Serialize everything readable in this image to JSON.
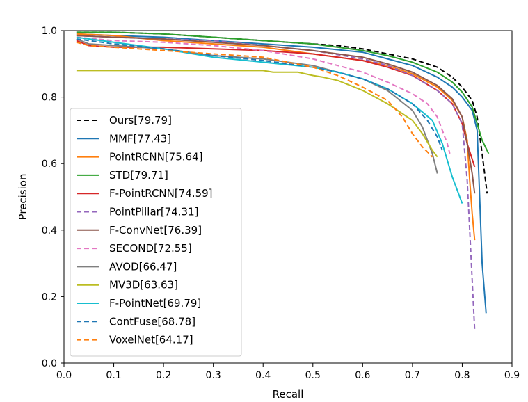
{
  "chart_data": {
    "type": "line",
    "title": "",
    "xlabel": "Recall",
    "ylabel": "Precision",
    "xlim": [
      0.0,
      0.9
    ],
    "ylim": [
      0.0,
      1.0
    ],
    "xticks": [
      "0.0",
      "0.1",
      "0.2",
      "0.3",
      "0.4",
      "0.5",
      "0.6",
      "0.7",
      "0.8",
      "0.9"
    ],
    "yticks": [
      "0.0",
      "0.2",
      "0.4",
      "0.6",
      "0.8",
      "1.0"
    ],
    "grid": false,
    "legend_position": "center-left",
    "series": [
      {
        "name": "Ours[79.79]",
        "color": "#000000",
        "dash": "dashed",
        "points": [
          [
            0.025,
            0.995
          ],
          [
            0.1,
            0.995
          ],
          [
            0.2,
            0.99
          ],
          [
            0.3,
            0.98
          ],
          [
            0.4,
            0.97
          ],
          [
            0.5,
            0.96
          ],
          [
            0.55,
            0.955
          ],
          [
            0.6,
            0.945
          ],
          [
            0.65,
            0.93
          ],
          [
            0.7,
            0.915
          ],
          [
            0.75,
            0.89
          ],
          [
            0.78,
            0.86
          ],
          [
            0.8,
            0.83
          ],
          [
            0.82,
            0.79
          ],
          [
            0.83,
            0.74
          ],
          [
            0.84,
            0.63
          ],
          [
            0.85,
            0.51
          ]
        ]
      },
      {
        "name": "MMF[77.43]",
        "color": "#1f77b4",
        "dash": "solid",
        "points": [
          [
            0.025,
            0.99
          ],
          [
            0.1,
            0.985
          ],
          [
            0.2,
            0.98
          ],
          [
            0.3,
            0.97
          ],
          [
            0.4,
            0.96
          ],
          [
            0.5,
            0.95
          ],
          [
            0.6,
            0.935
          ],
          [
            0.65,
            0.915
          ],
          [
            0.7,
            0.895
          ],
          [
            0.75,
            0.86
          ],
          [
            0.78,
            0.83
          ],
          [
            0.8,
            0.8
          ],
          [
            0.82,
            0.76
          ],
          [
            0.83,
            0.7
          ],
          [
            0.835,
            0.5
          ],
          [
            0.84,
            0.3
          ],
          [
            0.848,
            0.15
          ]
        ]
      },
      {
        "name": "PointRCNN[75.64]",
        "color": "#ff7f0e",
        "dash": "solid",
        "points": [
          [
            0.025,
            0.99
          ],
          [
            0.1,
            0.985
          ],
          [
            0.2,
            0.97
          ],
          [
            0.3,
            0.96
          ],
          [
            0.4,
            0.95
          ],
          [
            0.5,
            0.93
          ],
          [
            0.6,
            0.91
          ],
          [
            0.65,
            0.895
          ],
          [
            0.7,
            0.87
          ],
          [
            0.75,
            0.83
          ],
          [
            0.78,
            0.79
          ],
          [
            0.8,
            0.74
          ],
          [
            0.81,
            0.67
          ],
          [
            0.815,
            0.55
          ],
          [
            0.82,
            0.45
          ],
          [
            0.825,
            0.37
          ]
        ]
      },
      {
        "name": "STD[79.71]",
        "color": "#2ca02c",
        "dash": "solid",
        "points": [
          [
            0.025,
            0.995
          ],
          [
            0.1,
            0.995
          ],
          [
            0.2,
            0.99
          ],
          [
            0.3,
            0.98
          ],
          [
            0.4,
            0.97
          ],
          [
            0.5,
            0.96
          ],
          [
            0.6,
            0.94
          ],
          [
            0.65,
            0.925
          ],
          [
            0.7,
            0.905
          ],
          [
            0.75,
            0.875
          ],
          [
            0.78,
            0.845
          ],
          [
            0.8,
            0.815
          ],
          [
            0.82,
            0.77
          ],
          [
            0.83,
            0.72
          ],
          [
            0.84,
            0.67
          ],
          [
            0.853,
            0.63
          ]
        ]
      },
      {
        "name": "F-PointRCNN[74.59]",
        "color": "#d62728",
        "dash": "solid",
        "points": [
          [
            0.025,
            0.97
          ],
          [
            0.05,
            0.955
          ],
          [
            0.1,
            0.95
          ],
          [
            0.2,
            0.95
          ],
          [
            0.3,
            0.945
          ],
          [
            0.4,
            0.94
          ],
          [
            0.5,
            0.93
          ],
          [
            0.6,
            0.91
          ],
          [
            0.65,
            0.89
          ],
          [
            0.7,
            0.865
          ],
          [
            0.75,
            0.82
          ],
          [
            0.78,
            0.78
          ],
          [
            0.8,
            0.72
          ],
          [
            0.81,
            0.66
          ],
          [
            0.825,
            0.59
          ]
        ]
      },
      {
        "name": "PointPillar[74.31]",
        "color": "#9467bd",
        "dash": "dashed",
        "points": [
          [
            0.025,
            0.985
          ],
          [
            0.1,
            0.98
          ],
          [
            0.2,
            0.975
          ],
          [
            0.3,
            0.97
          ],
          [
            0.4,
            0.955
          ],
          [
            0.5,
            0.94
          ],
          [
            0.6,
            0.915
          ],
          [
            0.65,
            0.895
          ],
          [
            0.7,
            0.865
          ],
          [
            0.75,
            0.82
          ],
          [
            0.78,
            0.78
          ],
          [
            0.8,
            0.72
          ],
          [
            0.81,
            0.55
          ],
          [
            0.815,
            0.4
          ],
          [
            0.82,
            0.25
          ],
          [
            0.825,
            0.1
          ]
        ]
      },
      {
        "name": "F-ConvNet[76.39]",
        "color": "#8c564b",
        "dash": "solid",
        "points": [
          [
            0.025,
            0.985
          ],
          [
            0.1,
            0.98
          ],
          [
            0.2,
            0.975
          ],
          [
            0.3,
            0.965
          ],
          [
            0.4,
            0.955
          ],
          [
            0.5,
            0.94
          ],
          [
            0.6,
            0.92
          ],
          [
            0.65,
            0.9
          ],
          [
            0.7,
            0.875
          ],
          [
            0.75,
            0.835
          ],
          [
            0.78,
            0.795
          ],
          [
            0.8,
            0.74
          ],
          [
            0.81,
            0.66
          ],
          [
            0.82,
            0.57
          ],
          [
            0.825,
            0.51
          ]
        ]
      },
      {
        "name": "SECOND[72.55]",
        "color": "#e377c2",
        "dash": "dashed",
        "points": [
          [
            0.025,
            0.98
          ],
          [
            0.1,
            0.97
          ],
          [
            0.2,
            0.965
          ],
          [
            0.3,
            0.955
          ],
          [
            0.4,
            0.94
          ],
          [
            0.5,
            0.915
          ],
          [
            0.6,
            0.875
          ],
          [
            0.65,
            0.845
          ],
          [
            0.7,
            0.81
          ],
          [
            0.73,
            0.78
          ],
          [
            0.75,
            0.74
          ],
          [
            0.76,
            0.7
          ],
          [
            0.77,
            0.66
          ],
          [
            0.775,
            0.63
          ]
        ]
      },
      {
        "name": "AVOD[66.47]",
        "color": "#7f7f7f",
        "dash": "solid",
        "points": [
          [
            0.025,
            0.975
          ],
          [
            0.05,
            0.96
          ],
          [
            0.1,
            0.955
          ],
          [
            0.2,
            0.945
          ],
          [
            0.3,
            0.925
          ],
          [
            0.4,
            0.915
          ],
          [
            0.5,
            0.895
          ],
          [
            0.55,
            0.875
          ],
          [
            0.6,
            0.855
          ],
          [
            0.65,
            0.82
          ],
          [
            0.7,
            0.76
          ],
          [
            0.72,
            0.71
          ],
          [
            0.74,
            0.63
          ],
          [
            0.75,
            0.57
          ]
        ]
      },
      {
        "name": "MV3D[63.63]",
        "color": "#bcbd22",
        "dash": "solid",
        "points": [
          [
            0.025,
            0.88
          ],
          [
            0.1,
            0.88
          ],
          [
            0.2,
            0.88
          ],
          [
            0.3,
            0.88
          ],
          [
            0.4,
            0.88
          ],
          [
            0.42,
            0.875
          ],
          [
            0.47,
            0.875
          ],
          [
            0.5,
            0.865
          ],
          [
            0.52,
            0.86
          ],
          [
            0.55,
            0.85
          ],
          [
            0.6,
            0.82
          ],
          [
            0.65,
            0.78
          ],
          [
            0.7,
            0.73
          ],
          [
            0.72,
            0.69
          ],
          [
            0.74,
            0.64
          ],
          [
            0.75,
            0.62
          ]
        ]
      },
      {
        "name": "F-PointNet[69.79]",
        "color": "#17becf",
        "dash": "solid",
        "points": [
          [
            0.025,
            0.98
          ],
          [
            0.1,
            0.965
          ],
          [
            0.2,
            0.945
          ],
          [
            0.3,
            0.92
          ],
          [
            0.4,
            0.905
          ],
          [
            0.5,
            0.89
          ],
          [
            0.55,
            0.875
          ],
          [
            0.6,
            0.855
          ],
          [
            0.65,
            0.825
          ],
          [
            0.7,
            0.78
          ],
          [
            0.74,
            0.73
          ],
          [
            0.76,
            0.66
          ],
          [
            0.77,
            0.61
          ],
          [
            0.78,
            0.56
          ],
          [
            0.8,
            0.48
          ]
        ]
      },
      {
        "name": "ContFuse[68.78]",
        "color": "#1f77b4",
        "dash": "dashed",
        "points": [
          [
            0.025,
            0.975
          ],
          [
            0.1,
            0.96
          ],
          [
            0.2,
            0.945
          ],
          [
            0.3,
            0.925
          ],
          [
            0.4,
            0.91
          ],
          [
            0.5,
            0.89
          ],
          [
            0.55,
            0.875
          ],
          [
            0.6,
            0.855
          ],
          [
            0.65,
            0.825
          ],
          [
            0.7,
            0.78
          ],
          [
            0.73,
            0.73
          ],
          [
            0.75,
            0.68
          ],
          [
            0.76,
            0.64
          ]
        ]
      },
      {
        "name": "VoxelNet[64.17]",
        "color": "#ff7f0e",
        "dash": "dashed",
        "points": [
          [
            0.025,
            0.965
          ],
          [
            0.05,
            0.955
          ],
          [
            0.1,
            0.95
          ],
          [
            0.2,
            0.94
          ],
          [
            0.3,
            0.93
          ],
          [
            0.4,
            0.92
          ],
          [
            0.5,
            0.89
          ],
          [
            0.55,
            0.865
          ],
          [
            0.6,
            0.83
          ],
          [
            0.65,
            0.79
          ],
          [
            0.68,
            0.74
          ],
          [
            0.7,
            0.69
          ],
          [
            0.72,
            0.65
          ],
          [
            0.74,
            0.62
          ]
        ]
      }
    ]
  }
}
